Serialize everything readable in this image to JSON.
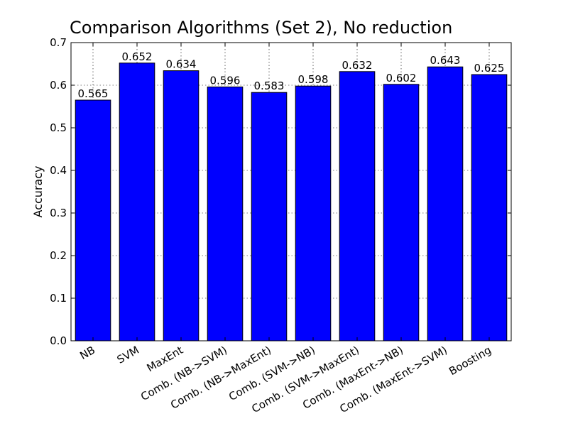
{
  "chart_data": {
    "type": "bar",
    "title": "Comparison Algorithms (Set 2), No reduction",
    "xlabel": "",
    "ylabel": "Accuracy",
    "categories": [
      "NB",
      "SVM",
      "MaxEnt",
      "Comb. (NB->SVM)",
      "Comb. (NB->MaxEnt)",
      "Comb. (SVM->NB)",
      "Comb. (SVM->MaxEnt)",
      "Comb. (MaxEnt->NB)",
      "Comb. (MaxEnt->SVM)",
      "Boosting"
    ],
    "values": [
      0.565,
      0.652,
      0.634,
      0.596,
      0.583,
      0.598,
      0.632,
      0.602,
      0.643,
      0.625
    ],
    "value_labels": [
      "0.565",
      "0.652",
      "0.634",
      "0.596",
      "0.583",
      "0.598",
      "0.632",
      "0.602",
      "0.643",
      "0.625"
    ],
    "ylim": [
      0,
      0.7
    ],
    "yticks": [
      "0.0",
      "0.1",
      "0.2",
      "0.3",
      "0.4",
      "0.5",
      "0.6",
      "0.7"
    ],
    "grid": true,
    "legend": "none",
    "bar_color": "#0000ff"
  }
}
